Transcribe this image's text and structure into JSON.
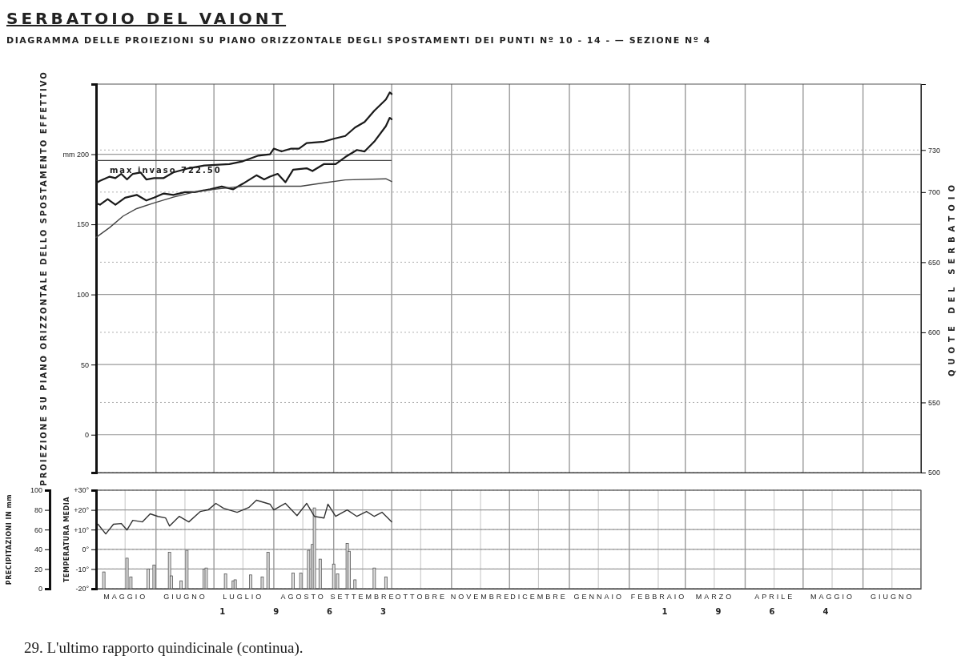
{
  "chart_data": [
    {
      "type": "line",
      "title": "SERBATOIO DEL VAIONT",
      "subtitle": "DIAGRAMMA DELLE PROIEZIONI SU PIANO ORIZZONTALE DEGLI SPOSTAMENTI DEI PUNTI Nº 10 - 14 - — SEZIONE Nº 4",
      "ylabel": "PROIEZIONE SU PIANO ORIZZONTALE DELLO SPOSTAMENTO EFFETTIVO",
      "y2label": "QUOTE DEL SERBATOIO",
      "xlim": [
        "1963-05-01",
        "1964-07-01"
      ],
      "xticks": [
        {
          "value": "1963-05-01",
          "label": null
        },
        {
          "value": "1963-06-01",
          "label": null
        },
        {
          "value": "1963-07-01",
          "label": null
        },
        {
          "value": "1963-08-01",
          "label": null
        },
        {
          "value": "1963-09-01",
          "label": null
        },
        {
          "value": "1963-10-01",
          "label": null
        },
        {
          "value": "1963-11-01",
          "label": null
        },
        {
          "value": "1963-12-01",
          "label": null
        },
        {
          "value": "1964-01-01",
          "label": null
        },
        {
          "value": "1964-02-01",
          "label": null
        },
        {
          "value": "1964-03-01",
          "label": null
        },
        {
          "value": "1964-04-01",
          "label": null
        },
        {
          "value": "1964-05-01",
          "label": null
        },
        {
          "value": "1964-06-01",
          "label": null
        },
        {
          "value": "1964-07-01",
          "label": null
        }
      ],
      "ylim": [
        -27,
        250
      ],
      "yticks": [
        0,
        50,
        100,
        150,
        {
          "value": 200,
          "label": "mm 200"
        }
      ],
      "y2lim": [
        500,
        777
      ],
      "y2ticks": [
        500,
        550,
        600,
        650,
        700,
        730
      ],
      "tick_labels": "y",
      "grid": true,
      "marker": "none",
      "line_style": "solid",
      "ref_lines": [
        {
          "axis": "y2",
          "value": 722.5,
          "label": "max invaso 722.50",
          "color": "#444444"
        }
      ],
      "series": [
        {
          "color": "#1a1a1a",
          "x": [
            "1963-05-01",
            "1963-05-03",
            "1963-05-08",
            "1963-05-11",
            "1963-05-14",
            "1963-05-17",
            "1963-05-20",
            "1963-05-24",
            "1963-05-27",
            "1963-05-31",
            "1963-06-05",
            "1963-06-10",
            "1963-06-18",
            "1963-06-26",
            "1963-07-09",
            "1963-07-16",
            "1963-07-24",
            "1963-07-30",
            "1963-08-01",
            "1963-08-05",
            "1963-08-10",
            "1963-08-14",
            "1963-08-18",
            "1963-08-27",
            "1963-09-01",
            "1963-09-07",
            "1963-09-12",
            "1963-09-17",
            "1963-09-22",
            "1963-09-28",
            "1963-09-30",
            "1963-10-01"
          ],
          "values": [
            179.5,
            181,
            184,
            183,
            186,
            182,
            186,
            187,
            182,
            183,
            183,
            187,
            190,
            192,
            193,
            195,
            199,
            200,
            204,
            202,
            204,
            204,
            208,
            209,
            211,
            213,
            219,
            223,
            231,
            239,
            244,
            243
          ]
        },
        {
          "color": "#1a1a1a",
          "x": [
            "1963-05-01",
            "1963-05-03",
            "1963-05-07",
            "1963-05-11",
            "1963-05-16",
            "1963-05-22",
            "1963-05-27",
            "1963-05-31",
            "1963-06-05",
            "1963-06-10",
            "1963-06-16",
            "1963-06-21",
            "1963-06-29",
            "1963-07-05",
            "1963-07-11",
            "1963-07-16",
            "1963-07-23",
            "1963-07-27",
            "1963-07-30",
            "1963-08-03",
            "1963-08-07",
            "1963-08-11",
            "1963-08-18",
            "1963-08-21",
            "1963-08-27",
            "1963-09-02",
            "1963-09-07",
            "1963-09-13",
            "1963-09-17",
            "1963-09-22",
            "1963-09-28",
            "1963-09-30",
            "1963-10-01"
          ],
          "values": [
            165,
            164,
            168,
            164,
            169,
            171,
            167,
            169,
            172,
            171,
            173,
            173,
            175,
            177,
            175,
            179,
            185,
            182,
            184,
            186,
            180,
            189,
            190,
            188,
            193,
            193,
            198,
            203,
            202,
            209,
            220,
            226,
            225
          ]
        },
        {
          "color": "#444444",
          "axis": "y2",
          "x": [
            "1963-05-01",
            "1963-05-08",
            "1963-05-15",
            "1963-05-22",
            "1963-05-31",
            "1963-06-10",
            "1963-06-21",
            "1963-07-02",
            "1963-07-16",
            "1963-07-30",
            "1963-08-15",
            "1963-08-27",
            "1963-09-07",
            "1963-09-28",
            "1963-10-01"
          ],
          "values": [
            667.7,
            674.7,
            682.9,
            688.2,
            692.3,
            696.4,
            700.1,
            702.1,
            704.2,
            704.2,
            704.2,
            706.6,
            708.7,
            709.5,
            707.5
          ]
        }
      ]
    },
    {
      "type": "bar",
      "ylabel": "PRECIPITAZIONI IN mm",
      "y2label": "TEMPERATURA MEDIA",
      "xlim": [
        "1963-05-01",
        "1964-07-01"
      ],
      "xticks": [
        {
          "value": "1963-05-01",
          "label": null
        },
        {
          "value": "1963-05-16",
          "label": "MAGGIO"
        },
        {
          "value": "1963-06-01",
          "label": null
        },
        {
          "value": "1963-06-16",
          "label": "GIUGNO"
        },
        {
          "value": "1963-07-01",
          "label": null
        },
        {
          "value": "1963-07-16",
          "label": "LUGLIO"
        },
        {
          "value": "1963-08-01",
          "label": null
        },
        {
          "value": "1963-08-16",
          "label": "AGOSTO"
        },
        {
          "value": "1963-09-01",
          "label": null
        },
        {
          "value": "1963-09-16",
          "label": "SETTEMBRE"
        },
        {
          "value": "1963-10-01",
          "label": null
        },
        {
          "value": "1963-10-16",
          "label": "OTTOBRE"
        },
        {
          "value": "1963-11-01",
          "label": null
        },
        {
          "value": "1963-11-16",
          "label": "NOVEMBRE"
        },
        {
          "value": "1963-12-01",
          "label": null
        },
        {
          "value": "1963-12-16",
          "label": "DICEMBRE"
        },
        {
          "value": "1964-01-01",
          "label": null
        },
        {
          "value": "1964-01-16",
          "label": "GENNAIO"
        },
        {
          "value": "1964-02-01",
          "label": null
        },
        {
          "value": "1964-02-16",
          "label": "FEBBRAIO"
        },
        {
          "value": "1964-03-01",
          "label": null
        },
        {
          "value": "1964-03-16",
          "label": "MARZO"
        },
        {
          "value": "1964-04-01",
          "label": null
        },
        {
          "value": "1964-04-16",
          "label": "APRILE"
        },
        {
          "value": "1964-05-01",
          "label": null
        },
        {
          "value": "1964-05-16",
          "label": "MAGGIO"
        },
        {
          "value": "1964-06-01",
          "label": null
        },
        {
          "value": "1964-06-16",
          "label": "GIUGNO"
        },
        {
          "value": "1964-07-01",
          "label": null
        }
      ],
      "ylim": [
        0,
        100
      ],
      "yticks": [
        0,
        20,
        40,
        60,
        80,
        100
      ],
      "y2lim": [
        -20,
        30
      ],
      "y2ticks": [
        {
          "value": -20,
          "label": "-20°"
        },
        {
          "value": -10,
          "label": "-10°"
        },
        {
          "value": 0,
          "label": "0°"
        },
        {
          "value": 10,
          "label": "+10°"
        },
        {
          "value": 20,
          "label": "+20°"
        },
        {
          "value": 30,
          "label": "+30°"
        }
      ],
      "grid": true,
      "annotations": [
        "1963",
        "1964",
        "29. L'ultimo rapporto quindicinale (continua)."
      ],
      "series": [
        {
          "color": "#555555",
          "x": [
            "1963-05-05",
            "1963-05-17",
            "1963-05-19",
            "1963-05-28",
            "1963-05-31",
            "1963-06-08",
            "1963-06-09",
            "1963-06-14",
            "1963-06-17",
            "1963-06-26",
            "1963-06-27",
            "1963-07-07",
            "1963-07-11",
            "1963-07-12",
            "1963-07-20",
            "1963-07-26",
            "1963-07-29",
            "1963-08-11",
            "1963-08-15",
            "1963-08-19",
            "1963-08-21",
            "1963-08-22",
            "1963-08-25",
            "1963-09-01",
            "1963-09-03",
            "1963-09-08",
            "1963-09-09",
            "1963-09-12",
            "1963-09-22",
            "1963-09-28"
          ],
          "values": [
            17,
            31,
            12,
            20,
            24,
            37,
            13,
            8,
            39,
            20,
            21,
            15,
            8,
            9,
            14,
            12,
            37,
            16,
            16,
            39,
            45,
            82,
            30,
            25,
            15,
            46,
            38,
            9,
            21,
            12
          ]
        },
        {
          "type": "line",
          "axis": "y2",
          "color": "#333333",
          "x": [
            "1963-05-02",
            "1963-05-06",
            "1963-05-10",
            "1963-05-14",
            "1963-05-17",
            "1963-05-20",
            "1963-05-25",
            "1963-05-29",
            "1963-06-02",
            "1963-06-06",
            "1963-06-08",
            "1963-06-13",
            "1963-06-18",
            "1963-06-24",
            "1963-06-28",
            "1963-07-02",
            "1963-07-06",
            "1963-07-13",
            "1963-07-19",
            "1963-07-23",
            "1963-07-30",
            "1963-08-01",
            "1963-08-07",
            "1963-08-13",
            "1963-08-18",
            "1963-08-22",
            "1963-08-27",
            "1963-08-29",
            "1963-09-02",
            "1963-09-08",
            "1963-09-13",
            "1963-09-18",
            "1963-09-22",
            "1963-09-26",
            "1963-10-01"
          ],
          "values": [
            12.7,
            7.8,
            12.7,
            13.1,
            9.8,
            14.7,
            13.9,
            18,
            16.7,
            15.9,
            11.8,
            16.7,
            13.9,
            19.2,
            20,
            23.3,
            20.8,
            18.8,
            21.2,
            24.9,
            22.9,
            20,
            23.3,
            17.1,
            23.3,
            16.7,
            15.9,
            22.9,
            16.7,
            20,
            16.7,
            19.2,
            16.7,
            18.8,
            13.9
          ]
        }
      ]
    }
  ]
}
